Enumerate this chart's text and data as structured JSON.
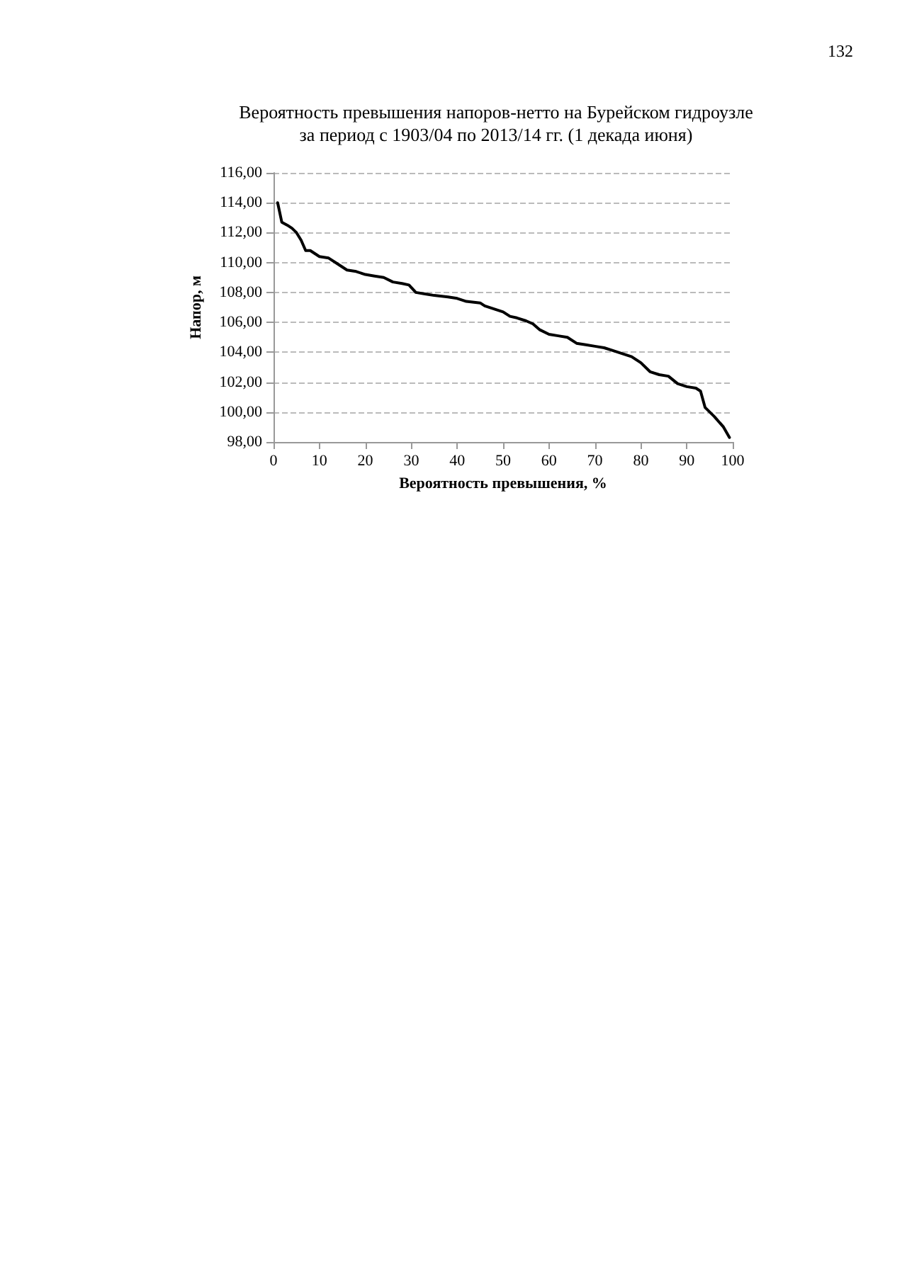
{
  "chart_data": {
    "type": "line",
    "title": "Вероятность превышения напоров-нетто на Бурейском гидроузле\nза период с 1903/04 по 2013/14 гг. (1 декада июня)",
    "xlabel": "Вероятность превышения, %",
    "ylabel": "Напор, м",
    "annotations": [
      "132"
    ],
    "x": [
      0.9,
      1.8,
      3,
      4,
      5,
      6,
      7,
      8,
      9,
      10,
      12,
      14,
      16,
      18,
      20,
      22,
      24,
      26,
      28,
      29.5,
      31,
      33,
      35,
      38,
      40,
      42,
      45,
      46,
      48,
      50,
      51.5,
      53,
      55,
      56.5,
      58,
      60,
      62,
      64,
      66,
      68,
      70,
      72,
      74,
      76,
      78,
      80,
      82,
      84,
      86,
      88,
      90,
      92,
      93,
      94,
      96,
      98,
      99.3
    ],
    "series": [
      {
        "color": "#000000",
        "values": [
          114.0,
          112.7,
          112.5,
          112.3,
          112.0,
          111.5,
          110.8,
          110.8,
          110.6,
          110.4,
          110.3,
          109.9,
          109.5,
          109.4,
          109.2,
          109.1,
          109.0,
          108.7,
          108.6,
          108.5,
          108.0,
          107.9,
          107.8,
          107.7,
          107.6,
          107.4,
          107.3,
          107.1,
          106.9,
          106.7,
          106.4,
          106.3,
          106.1,
          105.9,
          105.5,
          105.2,
          105.1,
          105.0,
          104.6,
          104.5,
          104.4,
          104.3,
          104.1,
          103.9,
          103.7,
          103.3,
          102.7,
          102.5,
          102.4,
          101.9,
          101.7,
          101.6,
          101.4,
          100.3,
          99.7,
          99.0,
          98.3
        ]
      }
    ],
    "xlim": [
      0,
      100
    ],
    "xticks": [
      0,
      10,
      20,
      30,
      40,
      50,
      60,
      70,
      80,
      90,
      100
    ],
    "ylim": [
      98,
      116
    ],
    "yticks": [
      {
        "value": 98,
        "label": "98,00"
      },
      {
        "value": 100,
        "label": "100,00"
      },
      {
        "value": 102,
        "label": "102,00"
      },
      {
        "value": 104,
        "label": "104,00"
      },
      {
        "value": 106,
        "label": "106,00"
      },
      {
        "value": 108,
        "label": "108,00"
      },
      {
        "value": 110,
        "label": "110,00"
      },
      {
        "value": 112,
        "label": "112,00"
      },
      {
        "value": 114,
        "label": "114,00"
      },
      {
        "value": 116,
        "label": "116,00"
      }
    ],
    "grid": "y",
    "marker": "none",
    "line_style": "solid"
  }
}
